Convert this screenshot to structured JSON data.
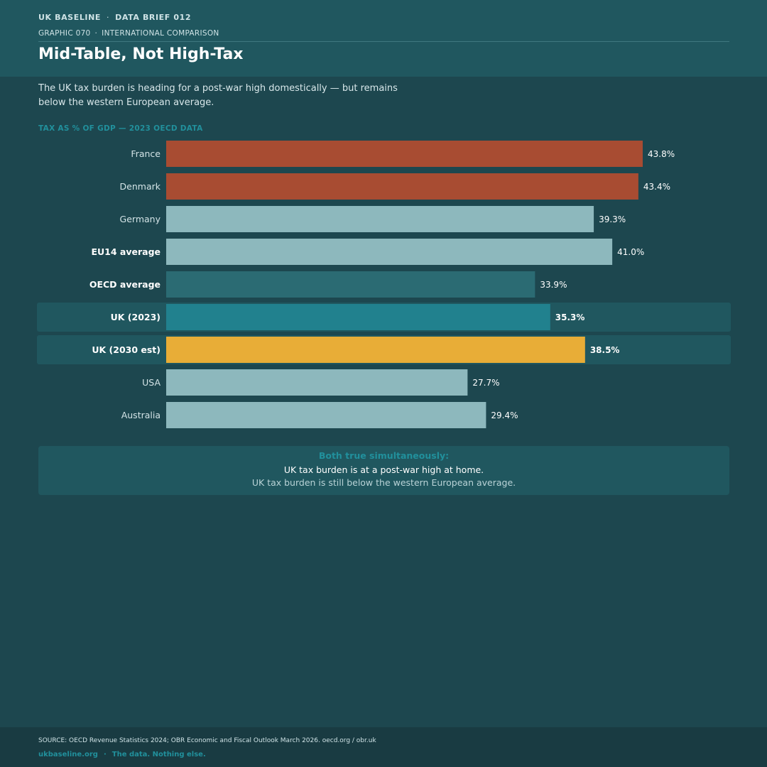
{
  "header": {
    "brand": "UK BASELINE",
    "brief": "DATA BRIEF 012",
    "graphic": "GRAPHIC 070",
    "section": "INTERNATIONAL COMPARISON",
    "separator": "·",
    "title": "Mid-Table, Not High-Tax"
  },
  "intro": "The UK tax burden is heading for a post-war high domestically — but remains below the western European average.",
  "chart_data": {
    "type": "bar",
    "orientation": "horizontal",
    "title": "TAX AS % OF GDP — 2023 OECD DATA",
    "unit": "%",
    "categories": [
      "France",
      "Denmark",
      "Germany",
      "EU14 average",
      "OECD average",
      "UK (2023)",
      "UK (2030 est)",
      "USA",
      "Australia"
    ],
    "values": [
      43.8,
      43.4,
      39.3,
      41.0,
      33.9,
      35.3,
      38.5,
      27.7,
      29.4
    ],
    "value_labels": [
      "43.8%",
      "43.4%",
      "39.3%",
      "41.0%",
      "33.9%",
      "35.3%",
      "38.5%",
      "27.7%",
      "29.4%"
    ],
    "colors": [
      "#a84c32",
      "#a84c32",
      "#8db8bd",
      "#8db8bd",
      "#2b6b73",
      "#21818e",
      "#e8ad37",
      "#8db8bd",
      "#8db8bd"
    ],
    "bold_labels": [
      false,
      false,
      false,
      true,
      true,
      true,
      true,
      false,
      false
    ],
    "highlighted_rows": [
      false,
      false,
      false,
      false,
      false,
      true,
      true,
      false,
      false
    ],
    "highlight_color": "#20575f",
    "xlim": [
      0,
      50
    ],
    "grid": false,
    "legend": "none"
  },
  "callout": {
    "heading": "Both true simultaneously:",
    "line1": "UK tax burden is at a post-war high at home.",
    "line2": "UK tax burden is still below the western European average."
  },
  "footer": {
    "source": "SOURCE: OECD Revenue Statistics 2024; OBR Economic and Fiscal Outlook March 2026. oecd.org / obr.uk",
    "site": "ukbaseline.org",
    "separator": "·",
    "tagline": "The data. Nothing else."
  }
}
